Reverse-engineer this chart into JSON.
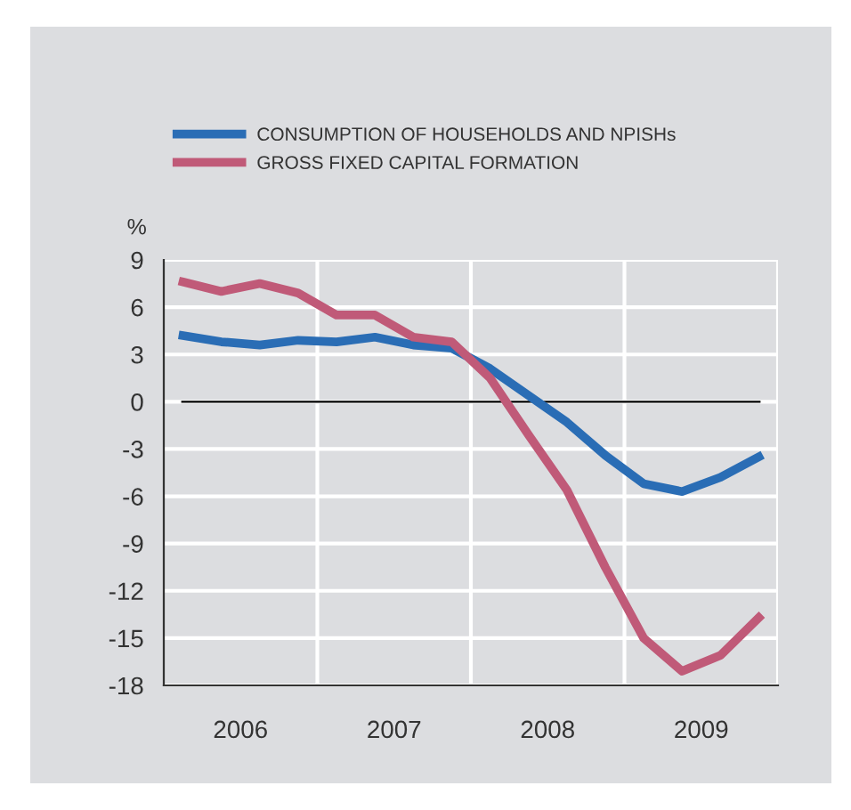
{
  "chart_data": {
    "type": "line",
    "ylabel": "%",
    "x": [
      2006.125,
      2006.375,
      2006.625,
      2006.875,
      2007.125,
      2007.375,
      2007.625,
      2007.875,
      2008.125,
      2008.375,
      2008.625,
      2008.875,
      2009.125,
      2009.375,
      2009.625,
      2009.875
    ],
    "series": [
      {
        "name": "CONSUMPTION OF HOUSEHOLDS AND NPISHs",
        "color": "#2a6db5",
        "values": [
          4.2,
          3.8,
          3.6,
          3.9,
          3.8,
          4.1,
          3.6,
          3.4,
          2.1,
          0.4,
          -1.3,
          -3.4,
          -5.2,
          -5.7,
          -4.8,
          -3.5
        ]
      },
      {
        "name": "GROSS FIXED CAPITAL FORMATION",
        "color": "#c05a78",
        "values": [
          7.6,
          7.0,
          7.5,
          6.9,
          5.5,
          5.5,
          4.1,
          3.8,
          1.5,
          -2.1,
          -5.6,
          -10.5,
          -15.0,
          -17.1,
          -16.1,
          -13.7
        ]
      }
    ],
    "xlim": [
      2006,
      2010
    ],
    "xticks": [
      {
        "value": 2006.5,
        "label": "2006"
      },
      {
        "value": 2007,
        "label": null
      },
      {
        "value": 2007.5,
        "label": "2007"
      },
      {
        "value": 2008,
        "label": null
      },
      {
        "value": 2008.5,
        "label": "2008"
      },
      {
        "value": 2009,
        "label": null
      },
      {
        "value": 2009.5,
        "label": "2009"
      },
      {
        "value": 2010,
        "label": null
      }
    ],
    "ylim": [
      -18,
      9
    ],
    "yticks": [
      9,
      6,
      3,
      0,
      -3,
      -6,
      -9,
      -12,
      -15,
      -18
    ],
    "ref_lines": [
      {
        "axis": "y",
        "value": 0,
        "color": "#000000"
      }
    ],
    "grid": true,
    "legend": "top",
    "marker": "none",
    "line_style": "solid"
  }
}
